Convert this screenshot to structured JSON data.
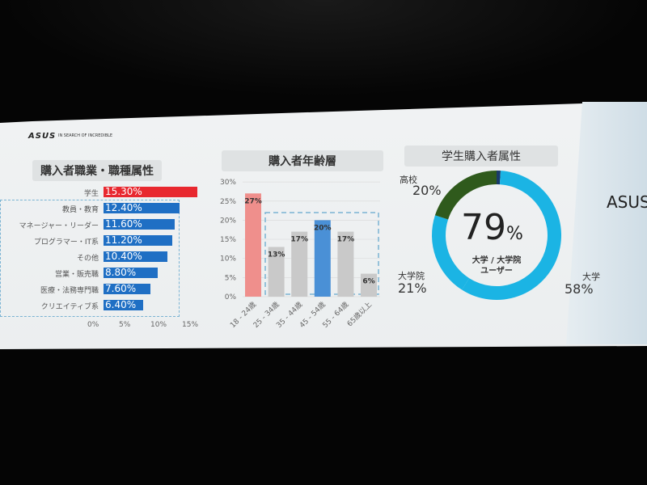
{
  "slide": {
    "logo": "ASUS",
    "tagline": "IN SEARCH OF INCREDIBLE",
    "photo_text": "ASUS"
  },
  "chart_data": [
    {
      "type": "bar",
      "orientation": "horizontal",
      "title": "購入者職業・職種属性",
      "categories": [
        "学生",
        "教員・教育",
        "マネージャー・リーダー",
        "プログラマー・IT系",
        "その他",
        "営業・販売職",
        "医療・法務専門職",
        "クリエイティブ系"
      ],
      "values": [
        15.3,
        12.4,
        11.6,
        11.2,
        10.4,
        8.8,
        7.6,
        6.4
      ],
      "labels": [
        "15.30%",
        "12.40%",
        "11.60%",
        "11.20%",
        "10.40%",
        "8.80%",
        "7.60%",
        "6.40%"
      ],
      "xticks": [
        "0%",
        "5%",
        "10%",
        "15%"
      ],
      "xlim": [
        0,
        15
      ],
      "colors": {
        "highlight": "#e8282f",
        "default": "#1f6fc4"
      }
    },
    {
      "type": "bar",
      "title": "購入者年齢層",
      "categories": [
        "18 - 24歳",
        "25 - 34歳",
        "35 - 44歳",
        "45 - 54歳",
        "55 - 64歳",
        "65歳以上"
      ],
      "values": [
        27,
        13,
        17,
        20,
        17,
        6
      ],
      "labels": [
        "27%",
        "13%",
        "17%",
        "20%",
        "17%",
        "6%"
      ],
      "yticks": [
        "0%",
        "5%",
        "10%",
        "15%",
        "20%",
        "25%",
        "30%"
      ],
      "ylim": [
        0,
        30
      ],
      "grid": true,
      "colors": [
        "#ef8f8c",
        "#c9c9c9",
        "#c9c9c9",
        "#4a90d6",
        "#c9c9c9",
        "#c9c9c9"
      ]
    },
    {
      "type": "pie",
      "donut": true,
      "title": "学生購入者属性",
      "slices": [
        {
          "name": "",
          "value": 1,
          "color": "#1a3a6a"
        },
        {
          "name": "大学",
          "value": 58,
          "label": "58%",
          "color": "#1bb4e4"
        },
        {
          "name": "大学院",
          "value": 21,
          "label": "21%",
          "color": "#1bb4e4"
        },
        {
          "name": "高校",
          "value": 20,
          "label": "20%",
          "color": "#2f5a1c"
        }
      ],
      "center_value": "79",
      "center_unit": "%",
      "center_line1": "大学 / 大学院",
      "center_line2": "ユーザー"
    }
  ]
}
